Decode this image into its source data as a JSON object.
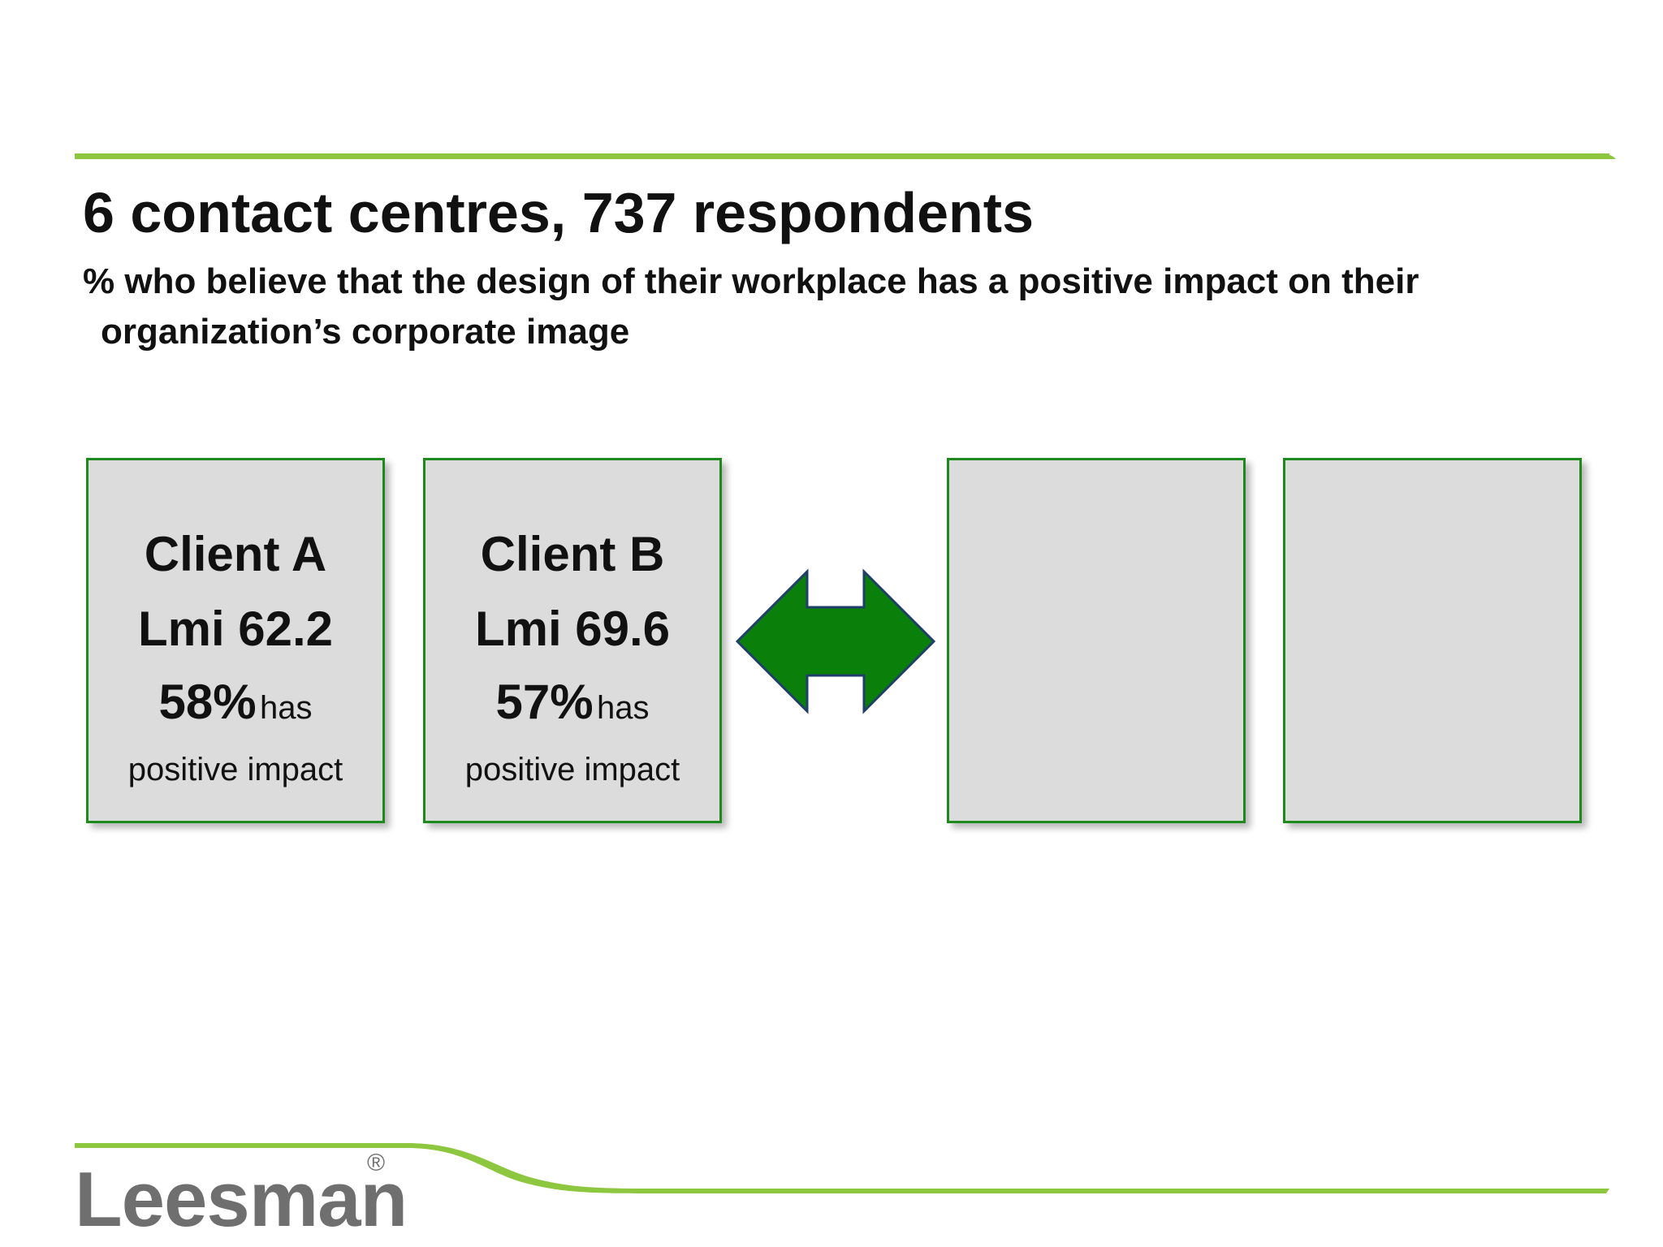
{
  "slide": {
    "title": "6 contact centres, 737 respondents",
    "subtitle_line1": "% who believe that the design of their workplace has a positive impact on their",
    "subtitle_line2": "organization’s corporate image",
    "accent_color": "#8dc63f",
    "card_border_color": "#1e8a1e",
    "card_fill_color": "#dcdcdc",
    "arrow_color": "#0a7f0a"
  },
  "cards": [
    {
      "client": "Client A",
      "lmi": "Lmi 62.2",
      "percent": "58%",
      "has": "has",
      "positive": "positive impact"
    },
    {
      "client": "Client B",
      "lmi": "Lmi 69.6",
      "percent": "57%",
      "has": "has",
      "positive": "positive impact"
    }
  ],
  "icons": {
    "arrow": "double-headed-arrow-icon"
  },
  "logo": {
    "text": "Leesman",
    "registered": "®"
  }
}
